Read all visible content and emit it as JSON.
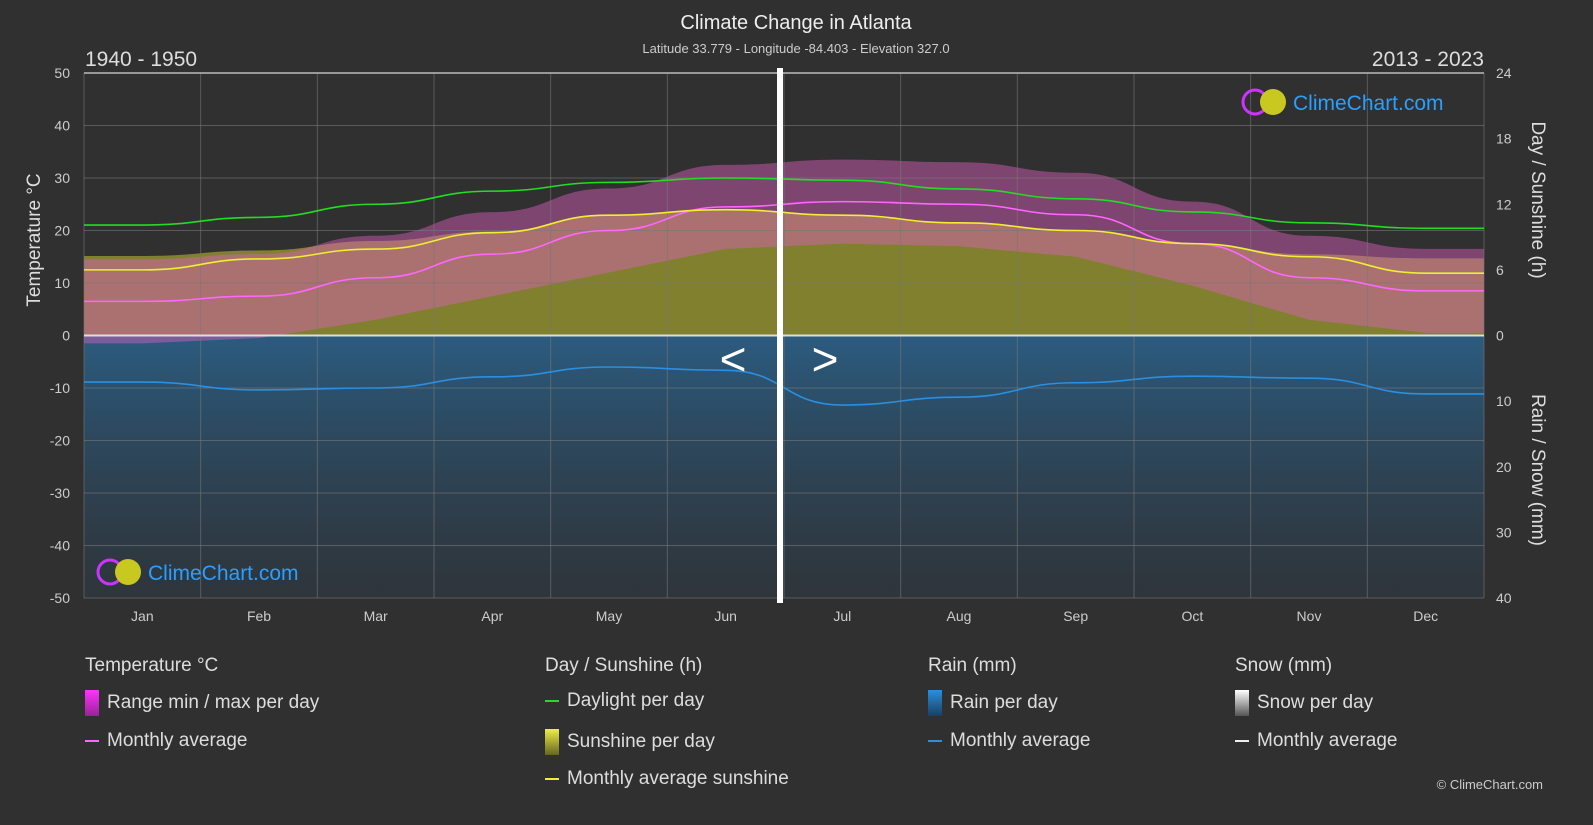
{
  "chart_data": {
    "type": "line",
    "title": "Climate Change in Atlanta",
    "subtitle": "Latitude 33.779 - Longitude -84.403 - Elevation 327.0",
    "period_left": "1940 - 1950",
    "period_right": "2013 - 2023",
    "categories": [
      "Jan",
      "Feb",
      "Mar",
      "Apr",
      "May",
      "Jun",
      "Jul",
      "Aug",
      "Sep",
      "Oct",
      "Nov",
      "Dec"
    ],
    "axes": {
      "left": {
        "label": "Temperature °C",
        "range": [
          -50,
          50
        ],
        "ticks": [
          50,
          40,
          30,
          20,
          10,
          0,
          -10,
          -20,
          -30,
          -40,
          -50
        ]
      },
      "right_top": {
        "label": "Day / Sunshine (h)",
        "range": [
          0,
          24
        ],
        "ticks": [
          24,
          18,
          12,
          6,
          0
        ]
      },
      "right_bottom": {
        "label": "Rain / Snow (mm)",
        "range": [
          0,
          40
        ],
        "ticks": [
          0,
          10,
          20,
          30,
          40
        ]
      }
    },
    "grid": true,
    "series": [
      {
        "name": "Monthly average",
        "group": "Temperature °C",
        "color": "#ff66ff",
        "values": [
          6.5,
          7.5,
          11,
          15.5,
          20,
          24.5,
          25.5,
          25,
          23,
          17.5,
          11,
          8.5
        ]
      },
      {
        "name": "Daylight per day",
        "group": "Day / Sunshine (h)",
        "color": "#22dd22",
        "values": [
          10.1,
          10.8,
          12.0,
          13.2,
          14.0,
          14.4,
          14.2,
          13.4,
          12.5,
          11.3,
          10.3,
          9.8
        ]
      },
      {
        "name": "Monthly average sunshine",
        "group": "Day / Sunshine (h)",
        "color": "#eeee33",
        "values": [
          6.0,
          7.0,
          7.9,
          9.4,
          11.0,
          11.5,
          11.0,
          10.3,
          9.6,
          8.4,
          7.2,
          5.7
        ]
      },
      {
        "name": "Monthly average",
        "group": "Rain (mm)",
        "color": "#2a8fe0",
        "values": [
          7.1,
          8.3,
          8.0,
          6.3,
          4.8,
          5.3,
          10.6,
          9.4,
          7.2,
          6.2,
          6.5,
          8.9
        ]
      }
    ],
    "legend": {
      "groups": [
        {
          "title": "Temperature °C",
          "items": [
            "Range min / max per day",
            "Monthly average"
          ]
        },
        {
          "title": "Day / Sunshine (h)",
          "items": [
            "Daylight per day",
            "Sunshine per day",
            "Monthly average sunshine"
          ]
        },
        {
          "title": "Rain (mm)",
          "items": [
            "Rain per day",
            "Monthly average"
          ]
        },
        {
          "title": "Snow (mm)",
          "items": [
            "Snow per day",
            "Monthly average"
          ]
        }
      ],
      "placement": "bottom"
    }
  },
  "nav": {
    "prev": "<",
    "next": ">"
  },
  "brand": "ClimeChart.com",
  "copyright": "© ClimeChart.com"
}
